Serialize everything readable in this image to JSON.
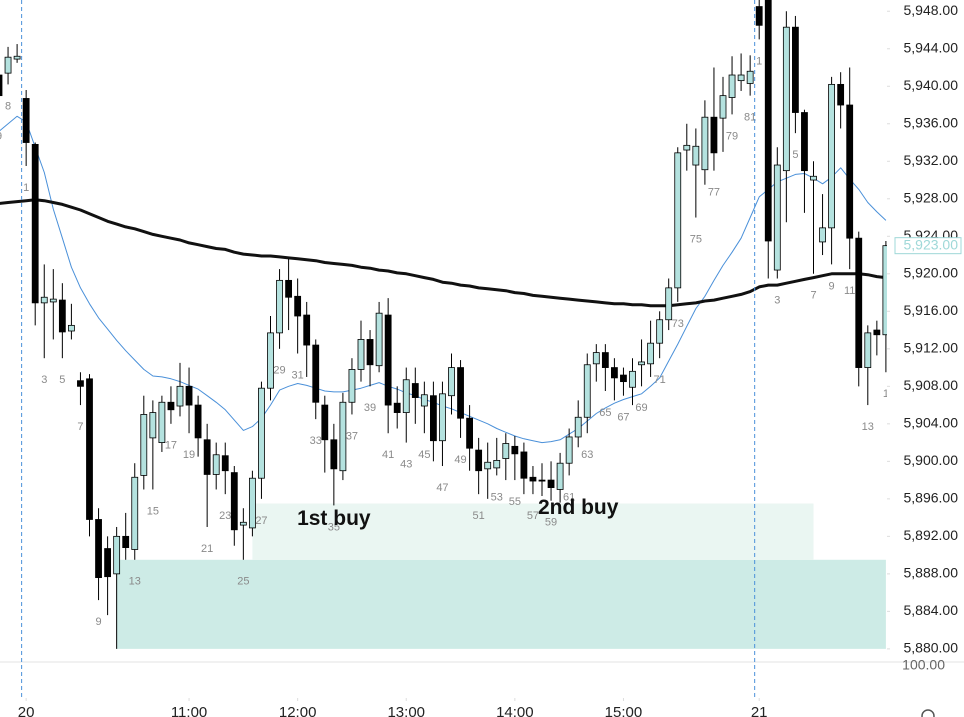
{
  "chart_data": {
    "type": "candlestick",
    "categories": [
      "9",
      "8",
      null,
      "1",
      null,
      "3",
      null,
      "5",
      null,
      "7",
      null,
      "9",
      null,
      null,
      null,
      "13",
      null,
      "15",
      null,
      "17",
      null,
      "19",
      null,
      "21",
      null,
      "23",
      null,
      "25",
      null,
      "27",
      null,
      "29",
      null,
      "31",
      null,
      "33",
      null,
      "35",
      null,
      "37",
      null,
      "39",
      null,
      "41",
      null,
      "43",
      null,
      "45",
      null,
      "47",
      null,
      "49",
      null,
      "51",
      null,
      "53",
      null,
      "55",
      null,
      "57",
      null,
      "59",
      null,
      "61",
      null,
      "63",
      null,
      "65",
      null,
      "67",
      null,
      "69",
      null,
      "71",
      null,
      "73",
      null,
      "75",
      null,
      "77",
      null,
      "79",
      null,
      "81",
      "1",
      null,
      "3",
      null,
      "5",
      null,
      "7",
      null,
      "9",
      null,
      "11",
      null,
      "13",
      null,
      "1"
    ],
    "open": [
      5941.2,
      5941.4,
      5942.9,
      5938.7,
      5933.8,
      5916.9,
      5917.0,
      5917.2,
      5913.9,
      5908.6,
      5908.8,
      5893.8,
      5890.7,
      5888.0,
      5892.0,
      5890.6,
      5898.5,
      5902.5,
      5902.0,
      5906.3,
      5905.9,
      5908.0,
      5906.0,
      5902.3,
      5898.6,
      5900.6,
      5898.8,
      5893.2,
      5892.9,
      5898.2,
      5907.8,
      5913.7,
      5919.3,
      5917.6,
      5915.6,
      5912.4,
      5906.0,
      5902.3,
      5899.0,
      5906.3,
      5909.8,
      5913.0,
      5910.2,
      5915.6,
      5906.2,
      5905.2,
      5908.3,
      5905.9,
      5907.0,
      5902.2,
      5907.0,
      5910.0,
      5904.6,
      5901.2,
      5899.2,
      5899.3,
      5900.3,
      5901.6,
      5901.0,
      5898.3,
      5898.0,
      5898.0,
      5897.0,
      5899.8,
      5902.6,
      5904.7,
      5910.4,
      5911.6,
      5910.0,
      5909.2,
      5907.9,
      5910.3,
      5910.4,
      5912.6,
      5915.1,
      5918.5,
      5933.2,
      5931.6,
      5931.1,
      5936.7,
      5936.6,
      5938.8,
      5940.6,
      5940.3,
      5948.5,
      5949.5,
      5920.4,
      5931.0,
      5946.3,
      5937.2,
      5930.0,
      5923.4,
      5924.9,
      5940.2,
      5938.0,
      5923.8,
      5910.0,
      5914.0,
      5913.5
    ],
    "high": [
      5942.0,
      5944.2,
      5944.5,
      5939.6,
      5934.0,
      5921.0,
      5920.5,
      5919.0,
      5916.8,
      5909.5,
      5909.3,
      5895.0,
      5892.0,
      5893.0,
      5894.5,
      5899.8,
      5907.0,
      5906.5,
      5907.0,
      5908.0,
      5910.5,
      5910.0,
      5907.0,
      5904.0,
      5902.0,
      5902.0,
      5899.5,
      5895.0,
      5899.0,
      5908.5,
      5915.5,
      5920.5,
      5921.6,
      5919.5,
      5917.0,
      5913.0,
      5907.0,
      5904.0,
      5907.3,
      5911.0,
      5915.0,
      5914.0,
      5917.0,
      5917.4,
      5908.0,
      5910.0,
      5910.0,
      5908.5,
      5908.5,
      5908.5,
      5911.5,
      5910.8,
      5906.0,
      5902.5,
      5902.0,
      5902.5,
      5903.0,
      5902.7,
      5902.0,
      5899.5,
      5899.8,
      5900.0,
      5900.9,
      5903.5,
      5906.5,
      5911.5,
      5912.5,
      5912.5,
      5911.0,
      5910.0,
      5911.0,
      5913.0,
      5915.0,
      5916.0,
      5919.5,
      5933.5,
      5936.0,
      5935.5,
      5938.5,
      5942.0,
      5941.0,
      5943.2,
      5943.5,
      5943.3,
      5950.0,
      5950.0,
      5933.5,
      5948.0,
      5947.5,
      5937.5,
      5932.0,
      5928.5,
      5941.0,
      5941.5,
      5942.0,
      5924.5,
      5914.5,
      5915.0,
      5923.5
    ],
    "low": [
      5937.0,
      5940.2,
      5942.5,
      5931.5,
      5914.5,
      5911.0,
      5913.0,
      5911.0,
      5913.0,
      5906.0,
      5892.0,
      5885.2,
      5883.6,
      5880.0,
      5889.5,
      5889.5,
      5897.0,
      5897.0,
      5901.0,
      5904.0,
      5904.8,
      5903.0,
      5900.5,
      5893.0,
      5897.0,
      5896.5,
      5891.0,
      5889.5,
      5892.0,
      5896.0,
      5906.5,
      5912.0,
      5914.0,
      5911.5,
      5909.0,
      5904.5,
      5898.8,
      5895.3,
      5898.0,
      5905.0,
      5908.5,
      5908.0,
      5909.5,
      5903.0,
      5903.5,
      5902.0,
      5904.0,
      5903.0,
      5900.0,
      5899.5,
      5905.0,
      5902.5,
      5899.0,
      5896.5,
      5896.0,
      5898.5,
      5898.0,
      5898.0,
      5896.5,
      5896.5,
      5896.3,
      5895.8,
      5895.6,
      5898.5,
      5901.5,
      5903.0,
      5908.5,
      5907.5,
      5906.5,
      5907.0,
      5906.0,
      5908.0,
      5909.0,
      5911.0,
      5914.0,
      5917.0,
      5931.0,
      5926.0,
      5929.5,
      5931.0,
      5933.0,
      5937.0,
      5939.5,
      5939.0,
      5945.0,
      5919.5,
      5919.5,
      5925.5,
      5935.0,
      5926.5,
      5920.0,
      5922.0,
      5921.0,
      5935.5,
      5920.5,
      5908.0,
      5906.0,
      5911.3,
      5909.5
    ],
    "close": [
      5939.0,
      5943.1,
      5943.2,
      5934.0,
      5916.9,
      5917.5,
      5917.3,
      5913.8,
      5914.5,
      5908.0,
      5893.8,
      5887.6,
      5887.7,
      5892.0,
      5890.8,
      5898.3,
      5905.0,
      5905.2,
      5906.3,
      5905.5,
      5908.0,
      5906.0,
      5902.5,
      5898.6,
      5900.7,
      5899.0,
      5892.7,
      5893.5,
      5898.2,
      5907.8,
      5913.7,
      5919.3,
      5917.5,
      5915.5,
      5912.4,
      5906.3,
      5902.3,
      5899.2,
      5906.3,
      5909.8,
      5913.0,
      5910.3,
      5915.8,
      5906.0,
      5905.2,
      5908.7,
      5906.8,
      5907.1,
      5902.2,
      5907.2,
      5910.0,
      5904.6,
      5901.4,
      5899.0,
      5899.9,
      5900.1,
      5901.9,
      5900.8,
      5898.2,
      5897.9,
      5897.9,
      5897.2,
      5899.8,
      5902.6,
      5904.7,
      5910.3,
      5911.6,
      5910.0,
      5908.9,
      5908.5,
      5909.6,
      5910.6,
      5912.6,
      5915.1,
      5918.5,
      5932.9,
      5933.7,
      5933.6,
      5936.7,
      5932.9,
      5939.0,
      5941.2,
      5941.2,
      5941.6,
      5946.5,
      5923.5,
      5931.6,
      5946.3,
      5937.2,
      5931.0,
      5930.4,
      5924.9,
      5940.2,
      5938.0,
      5923.8,
      5910.0,
      5913.7,
      5913.5,
      5923.0
    ],
    "up_color": "#b4e2df",
    "down_color": "#000000",
    "lines": [
      {
        "color": "#4a90d9",
        "width": 1,
        "values": [
          5935.2,
          5936.0,
          5936.8,
          5936.2,
          5933.5,
          5930.8,
          5926.9,
          5923.8,
          5920.7,
          5918.5,
          5916.8,
          5915.3,
          5914.1,
          5912.9,
          5911.8,
          5910.8,
          5909.8,
          5909.1,
          5909.0,
          5908.8,
          5908.5,
          5908.1,
          5907.7,
          5907.0,
          5906.3,
          5905.5,
          5904.4,
          5903.3,
          5903.7,
          5904.6,
          5906.0,
          5907.6,
          5908.0,
          5908.3,
          5908.1,
          5907.8,
          5907.5,
          5907.4,
          5907.4,
          5907.6,
          5907.8,
          5908.1,
          5908.4,
          5908.0,
          5907.7,
          5907.3,
          5907.0,
          5906.6,
          5906.3,
          5905.9,
          5905.6,
          5905.2,
          5904.8,
          5904.4,
          5904.0,
          5903.5,
          5903.1,
          5902.7,
          5902.4,
          5902.2,
          5902.0,
          5902.1,
          5902.3,
          5902.9,
          5903.5,
          5904.3,
          5905.1,
          5905.7,
          5906.2,
          5906.6,
          5906.9,
          5907.2,
          5908.0,
          5908.9,
          5910.7,
          5912.5,
          5914.4,
          5916.3,
          5917.6,
          5919.3,
          5920.9,
          5922.3,
          5923.8,
          5926.0,
          5928.2,
          5929.0,
          5929.8,
          5930.2,
          5930.6,
          5930.7,
          5930.2,
          5929.6,
          5930.3,
          5931.3,
          5930.1,
          5929.0,
          5927.6,
          5926.6,
          5925.7
        ]
      },
      {
        "color": "#111111",
        "width": 3,
        "values": [
          5927.5,
          5927.6,
          5927.7,
          5927.8,
          5927.9,
          5927.8,
          5927.6,
          5927.4,
          5927.1,
          5926.8,
          5926.4,
          5926.0,
          5925.6,
          5925.3,
          5925.0,
          5924.8,
          5924.5,
          5924.2,
          5924.0,
          5923.8,
          5923.6,
          5923.3,
          5923.1,
          5922.9,
          5922.7,
          5922.6,
          5922.3,
          5922.1,
          5922.0,
          5921.9,
          5921.9,
          5921.8,
          5921.7,
          5921.6,
          5921.5,
          5921.4,
          5921.2,
          5921.1,
          5921.0,
          5920.9,
          5920.7,
          5920.6,
          5920.4,
          5920.3,
          5920.1,
          5920.0,
          5919.8,
          5919.6,
          5919.4,
          5919.1,
          5919.0,
          5918.8,
          5918.7,
          5918.5,
          5918.4,
          5918.3,
          5918.2,
          5918.0,
          5917.9,
          5917.7,
          5917.6,
          5917.5,
          5917.4,
          5917.3,
          5917.2,
          5917.1,
          5917.0,
          5916.9,
          5916.8,
          5916.8,
          5916.7,
          5916.7,
          5916.6,
          5916.6,
          5916.6,
          5916.7,
          5916.8,
          5916.9,
          5917.1,
          5917.2,
          5917.4,
          5917.6,
          5917.8,
          5918.1,
          5918.6,
          5918.8,
          5918.8,
          5919.0,
          5919.2,
          5919.4,
          5919.6,
          5919.8,
          5920.0,
          5920.0,
          5920.0,
          5920.0,
          5919.9,
          5919.7,
          5919.6
        ]
      }
    ],
    "zones": [
      {
        "from": 13,
        "to": 98,
        "low": 5880,
        "high": 5889.5,
        "color": "#cdebe6"
      },
      {
        "from": 28,
        "to": 90,
        "low": 5889.5,
        "high": 5895.5,
        "color": "#eaf6f2"
      }
    ],
    "annotations": [
      {
        "text": "1st buy",
        "index": 37,
        "price": 5893.8
      },
      {
        "text": "2nd buy",
        "index": 64,
        "price": 5895.0
      }
    ],
    "session_breaks": [
      3,
      84
    ],
    "xticks": [
      {
        "value": 3,
        "label": "20"
      },
      {
        "value": 21,
        "label": "11:00"
      },
      {
        "value": 33,
        "label": "12:00"
      },
      {
        "value": 45,
        "label": "13:00"
      },
      {
        "value": 57,
        "label": "14:00"
      },
      {
        "value": 69,
        "label": "15:00"
      },
      {
        "value": 84,
        "label": "21"
      }
    ],
    "ylim": [
      5878.6,
      5949.2
    ],
    "yticks": [
      {
        "value": 5880,
        "label": "5,880.00"
      },
      {
        "value": 5884,
        "label": "5,884.00"
      },
      {
        "value": 5888,
        "label": "5,888.00"
      },
      {
        "value": 5892,
        "label": "5,892.00"
      },
      {
        "value": 5896,
        "label": "5,896.00"
      },
      {
        "value": 5900,
        "label": "5,900.00"
      },
      {
        "value": 5904,
        "label": "5,904.00"
      },
      {
        "value": 5908,
        "label": "5,908.00"
      },
      {
        "value": 5912,
        "label": "5,912.00"
      },
      {
        "value": 5916,
        "label": "5,916.00"
      },
      {
        "value": 5920,
        "label": "5,920.00"
      },
      {
        "value": 5924,
        "label": "5,924.00"
      },
      {
        "value": 5928,
        "label": "5,928.00"
      },
      {
        "value": 5932,
        "label": "5,932.00"
      },
      {
        "value": 5936,
        "label": "5,936.00"
      },
      {
        "value": 5940,
        "label": "5,940.00"
      },
      {
        "value": 5944,
        "label": "5,944.00"
      },
      {
        "value": 5948,
        "label": "5,948.00"
      }
    ],
    "last_price": {
      "value": 5923,
      "label": "5,923.00",
      "color": "#9fd8d8"
    },
    "lower_pane_label": "100.00"
  }
}
